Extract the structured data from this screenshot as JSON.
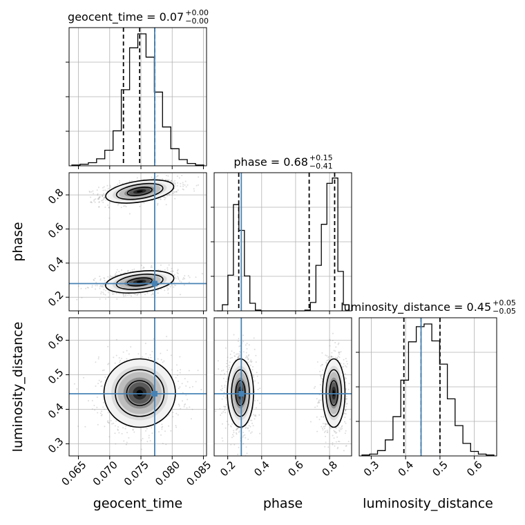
{
  "chart_data": {
    "type": "corner",
    "parameters": [
      "geocent_time",
      "phase",
      "luminosity_distance"
    ],
    "axis_labels": {
      "geocent_time": "geocent_time",
      "phase": "phase",
      "luminosity_distance": "luminosity_distance"
    },
    "truths": {
      "geocent_time": 0.0772,
      "phase": 0.28,
      "luminosity_distance": 0.445
    },
    "truth_color": "#4682b4",
    "titles": [
      {
        "param": "geocent_time",
        "text": "geocent_time = 0.07",
        "sup": "+0.00",
        "sub": "−0.00"
      },
      {
        "param": "phase",
        "text": "phase = 0.68",
        "sup": "+0.15",
        "sub": "−0.41"
      },
      {
        "param": "luminosity_distance",
        "text": "luminosity_distance = 0.45",
        "sup": "+0.05",
        "sub": "−0.05"
      }
    ],
    "ranges": {
      "geocent_time": [
        0.0635,
        0.0855
      ],
      "phase": [
        0.12,
        0.93
      ],
      "luminosity_distance": [
        0.265,
        0.665
      ]
    },
    "ticks": {
      "geocent_time": [
        "0.065",
        "0.070",
        "0.075",
        "0.080",
        "0.085"
      ],
      "phase": [
        "0.2",
        "0.4",
        "0.6",
        "0.8"
      ],
      "luminosity_distance": [
        "0.3",
        "0.4",
        "0.5",
        "0.6"
      ]
    },
    "histograms": {
      "geocent_time": {
        "quantiles": [
          0.0722,
          0.0748,
          0.0772
        ],
        "values": [
          1,
          2,
          4,
          9,
          20,
          45,
          98,
          152,
          170,
          140,
          95,
          50,
          22,
          8,
          3,
          1
        ],
        "max": 178
      },
      "phase": {
        "quantiles": [
          0.265,
          0.68,
          0.83
        ],
        "values": [
          0,
          8,
          47,
          140,
          106,
          46,
          10,
          1,
          0,
          0,
          0,
          0,
          0,
          0,
          0,
          0,
          1,
          11,
          60,
          114,
          168,
          175,
          52,
          8
        ],
        "max": 182
      },
      "luminosity_distance": {
        "quantiles": [
          0.395,
          0.445,
          0.5
        ],
        "values": [
          1,
          2,
          6,
          18,
          44,
          85,
          128,
          145,
          148,
          129,
          103,
          64,
          34,
          14,
          5,
          2,
          1
        ],
        "max": 155
      }
    },
    "joint": {
      "phase_vs_geocent_time": {
        "modes": [
          {
            "x": 0.0748,
            "y": 0.82,
            "sx": 0.0025,
            "sy": 0.028,
            "rho": 0.4
          },
          {
            "x": 0.0748,
            "y": 0.29,
            "sx": 0.0025,
            "sy": 0.028,
            "rho": 0.3
          }
        ]
      },
      "luminosity_distance_vs_geocent_time": {
        "modes": [
          {
            "x": 0.0748,
            "y": 0.447,
            "sx": 0.0026,
            "sy": 0.045,
            "rho": 0
          }
        ]
      },
      "luminosity_distance_vs_phase": {
        "modes": [
          {
            "x": 0.275,
            "y": 0.447,
            "sx": 0.035,
            "sy": 0.045,
            "rho": 0
          },
          {
            "x": 0.825,
            "y": 0.447,
            "sx": 0.03,
            "sy": 0.045,
            "rho": 0
          }
        ]
      }
    },
    "grid": true
  }
}
